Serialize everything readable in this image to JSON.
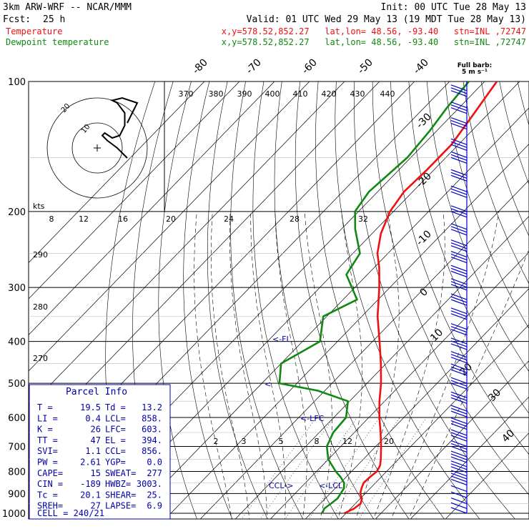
{
  "header": {
    "model": "3km ARW-WRF -- NCAR/MMM",
    "init": "Init: 00 UTC Tue 28 May 13",
    "fcst_label": "Fcst:",
    "fcst_value": "25 h",
    "valid": "Valid: 01 UTC Wed 29 May 13 (19 MDT Tue 28 May 13)",
    "temp_label": "Temperature",
    "dew_label": "Dewpoint temperature",
    "temp_loc": "x,y=578.52,852.27   lat,lon= 48.56, -93.40   stn=INL ,72747",
    "dew_loc": "x,y=578.52,852.27   lat,lon= 48.56, -93.40   stn=INL ,72747"
  },
  "barb_legend": {
    "l1": "Full barb:",
    "l2": "5 m s⁻¹"
  },
  "colors": {
    "temperature": "#ee1111",
    "dewpoint": "#118811",
    "wind_barbs": "#0000cc",
    "parcel_box": "#0000aa"
  },
  "chart_data": {
    "type": "skew-t",
    "pressure_levels": [
      100,
      200,
      300,
      400,
      500,
      600,
      700,
      800,
      900,
      1000
    ],
    "pressure_labels": [
      "100",
      "200",
      "300",
      "400",
      "500",
      "600",
      "700",
      "800",
      "900",
      "1000"
    ],
    "isotherm_labels": [
      "-80",
      "-70",
      "-60",
      "-50",
      "-40",
      "-30",
      "-20",
      "-10",
      "0",
      "10",
      "20",
      "30",
      "40"
    ],
    "theta_e_labels": [
      "370",
      "380",
      "390",
      "400",
      "410",
      "420",
      "430",
      "440"
    ],
    "mixing_ratio_labels": [
      "2",
      "3",
      "5",
      "8",
      "12",
      "20"
    ],
    "dry_adiabat_labels": [
      "290",
      "280",
      "270"
    ],
    "hodograph": {
      "units": "kts",
      "speed_labels": [
        "8",
        "12",
        "16",
        "20",
        "24",
        "28",
        "32"
      ],
      "ring_labels": [
        "20",
        "10"
      ],
      "u": [
        12,
        8,
        4,
        2,
        3,
        6,
        9,
        11,
        11,
        8,
        6,
        10,
        16,
        14,
        12
      ],
      "v": [
        -4,
        0,
        3,
        5,
        6,
        4,
        5,
        9,
        14,
        18,
        19,
        20,
        18,
        14,
        10
      ]
    },
    "temperature": {
      "name": "Temperature",
      "points": [
        [
          1000,
          19.5
        ],
        [
          975,
          21.0
        ],
        [
          950,
          21.5
        ],
        [
          925,
          20.5
        ],
        [
          900,
          18.6
        ],
        [
          875,
          17.5
        ],
        [
          850,
          16.6
        ],
        [
          825,
          16.8
        ],
        [
          800,
          17.2
        ],
        [
          775,
          16.5
        ],
        [
          750,
          15.0
        ],
        [
          700,
          11.5
        ],
        [
          650,
          7.5
        ],
        [
          600,
          3.0
        ],
        [
          550,
          -1.5
        ],
        [
          500,
          -6.0
        ],
        [
          450,
          -11.5
        ],
        [
          400,
          -18.0
        ],
        [
          350,
          -25.5
        ],
        [
          300,
          -33.0
        ],
        [
          270,
          -38.5
        ],
        [
          250,
          -43.0
        ],
        [
          225,
          -47.5
        ],
        [
          200,
          -51.0
        ],
        [
          180,
          -52.5
        ],
        [
          160,
          -52.0
        ],
        [
          140,
          -52.0
        ],
        [
          120,
          -54.0
        ],
        [
          100,
          -56.5
        ]
      ]
    },
    "dewpoint": {
      "name": "Dewpoint temperature",
      "points": [
        [
          1000,
          13.2
        ],
        [
          975,
          12.5
        ],
        [
          950,
          13.0
        ],
        [
          925,
          13.5
        ],
        [
          900,
          13.0
        ],
        [
          875,
          12.5
        ],
        [
          850,
          11.0
        ],
        [
          825,
          8.5
        ],
        [
          800,
          5.5
        ],
        [
          750,
          0.0
        ],
        [
          700,
          -4.0
        ],
        [
          650,
          -6.0
        ],
        [
          600,
          -6.5
        ],
        [
          550,
          -10.5
        ],
        [
          520,
          -22.0
        ],
        [
          500,
          -35.0
        ],
        [
          450,
          -40.0
        ],
        [
          400,
          -35.0
        ],
        [
          350,
          -41.0
        ],
        [
          320,
          -36.0
        ],
        [
          280,
          -46.0
        ],
        [
          250,
          -48.0
        ],
        [
          220,
          -56.0
        ],
        [
          200,
          -61.0
        ],
        [
          180,
          -62.5
        ],
        [
          150,
          -61.0
        ],
        [
          130,
          -62.0
        ],
        [
          115,
          -63.5
        ],
        [
          100,
          -64.5
        ]
      ]
    },
    "level_markers": [
      {
        "pressure": 410,
        "label": "<-FI"
      },
      {
        "pressure": 508,
        "label": "<"
      },
      {
        "pressure": 603,
        "label": "<-LFC"
      },
      {
        "pressure": 858,
        "label": "<-LCL"
      },
      {
        "pressure": 856,
        "label": "CCL->"
      }
    ],
    "wind_barb_levels": [
      105,
      115,
      125,
      140,
      150,
      165,
      180,
      200,
      220,
      240,
      255,
      275,
      295,
      320,
      345,
      375,
      405,
      435,
      465,
      500,
      540,
      580,
      620,
      660,
      700,
      740,
      780,
      820,
      860,
      890,
      920,
      950,
      975,
      1000
    ]
  },
  "parcel_info": {
    "title": "Parcel Info",
    "rows": [
      [
        "T  =",
        "19.5",
        "Td =",
        "13.2"
      ],
      [
        "LI =",
        "0.4",
        "LCL=",
        "858."
      ],
      [
        "K  =",
        "26",
        "LFC=",
        "603."
      ],
      [
        "TT =",
        "47",
        "EL =",
        "394."
      ],
      [
        "SVI=",
        "1.1",
        "CCL=",
        "856."
      ],
      [
        "PW =",
        "2.61",
        "YGP=",
        "0.0"
      ],
      [
        "CAPE=",
        "15",
        "SWEAT=",
        "277"
      ],
      [
        "CIN =",
        "-189",
        "HWBZ=",
        "3003."
      ],
      [
        "Tc =",
        "20.1",
        "SHEAR=",
        "25."
      ],
      [
        "SREH=",
        "27",
        "LAPSE=",
        "6.9"
      ]
    ],
    "cell": "CELL = 240/21"
  }
}
